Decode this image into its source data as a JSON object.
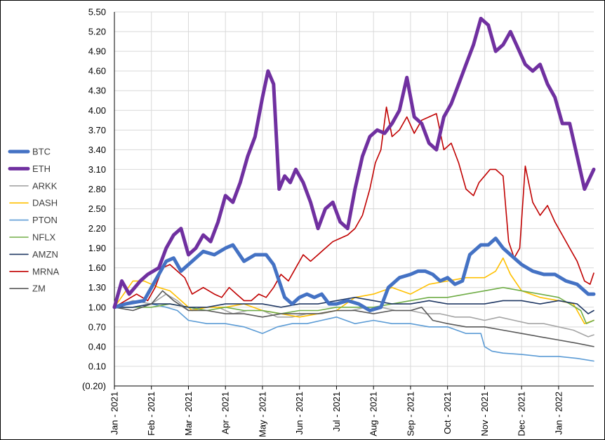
{
  "chart_data": {
    "type": "line",
    "title": "",
    "xlabel": "",
    "ylabel": "",
    "ylim": [
      -0.2,
      5.5
    ],
    "yticks": [
      "(0.20)",
      "0.10",
      "0.40",
      "0.70",
      "1.00",
      "1.30",
      "1.60",
      "1.90",
      "2.20",
      "2.50",
      "2.80",
      "3.10",
      "3.40",
      "3.70",
      "4.00",
      "4.30",
      "4.60",
      "4.90",
      "5.20",
      "5.50"
    ],
    "x_tick_labels": [
      "Jan - 2021",
      "Feb - 2021",
      "Mar - 2021",
      "Apr - 2021",
      "May - 2021",
      "Jun - 2021",
      "Jul - 2021",
      "Aug - 2021",
      "Sep - 2021",
      "Oct - 2021",
      "Nov - 2021",
      "Dec - 2021",
      "Jan - 2022"
    ],
    "x_tick_months": [
      0,
      1,
      2,
      3,
      4,
      5,
      6,
      7,
      8,
      9,
      10,
      11,
      12
    ],
    "x_range_months": [
      0,
      12.95
    ],
    "grid": true,
    "legend_position": "left",
    "series": [
      {
        "name": "BTC",
        "color": "#4472C4",
        "width": 5,
        "x_months": [
          0,
          0.3,
          0.8,
          1.1,
          1.4,
          1.6,
          1.8,
          2.1,
          2.4,
          2.7,
          3.0,
          3.2,
          3.5,
          3.8,
          4.1,
          4.3,
          4.45,
          4.6,
          4.8,
          5.0,
          5.2,
          5.4,
          5.6,
          5.8,
          6.0,
          6.3,
          6.6,
          6.9,
          7.2,
          7.4,
          7.7,
          8.0,
          8.2,
          8.4,
          8.6,
          8.8,
          9.0,
          9.2,
          9.4,
          9.6,
          9.9,
          10.1,
          10.3,
          10.5,
          10.7,
          11.0,
          11.3,
          11.6,
          11.9,
          12.2,
          12.5,
          12.8,
          12.95
        ],
        "values": [
          1.0,
          1.05,
          1.1,
          1.4,
          1.7,
          1.75,
          1.55,
          1.7,
          1.85,
          1.8,
          1.9,
          1.95,
          1.7,
          1.8,
          1.8,
          1.65,
          1.4,
          1.15,
          1.05,
          1.15,
          1.2,
          1.15,
          1.2,
          1.05,
          1.05,
          1.1,
          1.05,
          0.95,
          1.0,
          1.3,
          1.45,
          1.5,
          1.55,
          1.55,
          1.5,
          1.4,
          1.45,
          1.35,
          1.4,
          1.8,
          1.95,
          1.95,
          2.05,
          1.9,
          1.8,
          1.65,
          1.55,
          1.5,
          1.5,
          1.4,
          1.35,
          1.2,
          1.2
        ]
      },
      {
        "name": "ETH",
        "color": "#7030A0",
        "width": 5,
        "x_months": [
          0,
          0.2,
          0.4,
          0.7,
          0.9,
          1.2,
          1.4,
          1.6,
          1.8,
          2.0,
          2.2,
          2.4,
          2.6,
          2.8,
          3.0,
          3.2,
          3.4,
          3.6,
          3.8,
          4.0,
          4.15,
          4.3,
          4.45,
          4.6,
          4.75,
          4.9,
          5.1,
          5.3,
          5.5,
          5.7,
          5.9,
          6.1,
          6.3,
          6.5,
          6.7,
          6.9,
          7.1,
          7.3,
          7.5,
          7.7,
          7.9,
          8.1,
          8.3,
          8.5,
          8.7,
          8.9,
          9.1,
          9.3,
          9.5,
          9.7,
          9.9,
          10.1,
          10.3,
          10.5,
          10.7,
          10.9,
          11.1,
          11.3,
          11.5,
          11.7,
          11.9,
          12.1,
          12.3,
          12.5,
          12.7,
          12.95
        ],
        "values": [
          1.0,
          1.4,
          1.2,
          1.4,
          1.5,
          1.6,
          1.9,
          2.1,
          2.2,
          1.8,
          1.9,
          2.1,
          2.0,
          2.3,
          2.7,
          2.6,
          2.9,
          3.3,
          3.6,
          4.2,
          4.6,
          4.4,
          2.8,
          3.0,
          2.9,
          3.1,
          2.9,
          2.6,
          2.2,
          2.5,
          2.6,
          2.3,
          2.2,
          2.8,
          3.3,
          3.6,
          3.7,
          3.65,
          3.8,
          4.0,
          4.5,
          3.9,
          3.8,
          3.5,
          3.4,
          3.9,
          4.1,
          4.4,
          4.7,
          5.0,
          5.4,
          5.3,
          4.9,
          5.0,
          5.2,
          4.95,
          4.7,
          4.6,
          4.7,
          4.4,
          4.2,
          3.8,
          3.8,
          3.3,
          2.8,
          3.1
        ]
      },
      {
        "name": "ARKK",
        "color": "#A5A5A5",
        "width": 1.6,
        "x_months": [
          0,
          0.5,
          1.0,
          1.4,
          1.7,
          2.0,
          2.4,
          2.8,
          3.2,
          3.6,
          4.0,
          4.4,
          4.8,
          5.2,
          5.6,
          6.0,
          6.4,
          6.8,
          7.2,
          7.6,
          8.0,
          8.4,
          8.8,
          9.2,
          9.6,
          10.0,
          10.4,
          10.8,
          11.2,
          11.6,
          12.0,
          12.4,
          12.8,
          12.95
        ],
        "values": [
          1.0,
          1.1,
          1.05,
          1.2,
          1.1,
          0.95,
          1.0,
          1.0,
          0.9,
          0.95,
          0.95,
          0.85,
          0.85,
          0.9,
          0.9,
          0.95,
          0.95,
          1.0,
          1.0,
          0.95,
          0.95,
          0.9,
          0.9,
          0.85,
          0.85,
          0.8,
          0.85,
          0.8,
          0.75,
          0.75,
          0.7,
          0.65,
          0.55,
          0.58
        ]
      },
      {
        "name": "DASH",
        "color": "#FFC000",
        "width": 1.6,
        "x_months": [
          0,
          0.5,
          0.8,
          1.2,
          1.5,
          1.8,
          2.1,
          2.5,
          3.0,
          3.5,
          4.0,
          4.5,
          5.0,
          5.5,
          6.0,
          6.5,
          7.0,
          7.5,
          8.0,
          8.5,
          9.0,
          9.5,
          10.0,
          10.3,
          10.5,
          10.7,
          11.0,
          11.5,
          12.0,
          12.4,
          12.7,
          12.95
        ],
        "values": [
          1.0,
          1.4,
          1.4,
          1.3,
          1.25,
          1.1,
          0.95,
          1.0,
          1.0,
          1.05,
          0.95,
          0.9,
          0.85,
          0.9,
          0.95,
          1.15,
          1.2,
          1.3,
          1.2,
          1.35,
          1.4,
          1.45,
          1.45,
          1.55,
          1.75,
          1.5,
          1.25,
          1.15,
          1.1,
          1.05,
          0.75,
          0.8
        ]
      },
      {
        "name": "PTON",
        "color": "#5B9BD5",
        "width": 1.6,
        "x_months": [
          0,
          0.5,
          1.0,
          1.4,
          1.7,
          2.0,
          2.5,
          3.0,
          3.5,
          4.0,
          4.4,
          4.8,
          5.2,
          5.6,
          6.0,
          6.5,
          7.0,
          7.5,
          8.0,
          8.5,
          9.0,
          9.5,
          9.9,
          10.0,
          10.2,
          10.5,
          11.0,
          11.5,
          12.0,
          12.5,
          12.95
        ],
        "values": [
          1.0,
          1.0,
          1.05,
          1.0,
          0.95,
          0.8,
          0.75,
          0.75,
          0.7,
          0.6,
          0.7,
          0.75,
          0.75,
          0.8,
          0.85,
          0.75,
          0.8,
          0.75,
          0.75,
          0.7,
          0.7,
          0.6,
          0.6,
          0.4,
          0.33,
          0.3,
          0.28,
          0.25,
          0.25,
          0.22,
          0.18
        ]
      },
      {
        "name": "NFLX",
        "color": "#70AD47",
        "width": 1.6,
        "x_months": [
          0,
          0.5,
          1.0,
          1.5,
          2.0,
          2.5,
          3.0,
          3.5,
          4.0,
          4.5,
          5.0,
          5.5,
          6.0,
          6.5,
          7.0,
          7.5,
          8.0,
          8.5,
          9.0,
          9.5,
          10.0,
          10.5,
          11.0,
          11.5,
          12.0,
          12.3,
          12.6,
          12.75,
          12.95
        ],
        "values": [
          1.0,
          1.0,
          1.0,
          1.05,
          1.0,
          0.95,
          1.0,
          0.95,
          0.95,
          0.9,
          0.95,
          0.95,
          1.0,
          1.0,
          1.0,
          1.05,
          1.1,
          1.15,
          1.15,
          1.2,
          1.25,
          1.3,
          1.25,
          1.2,
          1.15,
          1.05,
          0.95,
          0.75,
          0.8
        ]
      },
      {
        "name": "AMZN",
        "color": "#203864",
        "width": 1.6,
        "x_months": [
          0,
          0.5,
          1.0,
          1.5,
          2.0,
          2.5,
          3.0,
          3.5,
          4.0,
          4.5,
          5.0,
          5.5,
          6.0,
          6.5,
          7.0,
          7.5,
          8.0,
          8.5,
          9.0,
          9.5,
          10.0,
          10.5,
          11.0,
          11.5,
          12.0,
          12.5,
          12.8,
          12.95
        ],
        "values": [
          1.0,
          1.0,
          1.05,
          1.05,
          1.0,
          1.0,
          1.05,
          1.05,
          1.05,
          1.0,
          1.05,
          1.05,
          1.1,
          1.15,
          1.1,
          1.05,
          1.05,
          1.1,
          1.05,
          1.05,
          1.05,
          1.1,
          1.1,
          1.05,
          1.1,
          1.05,
          0.9,
          0.95
        ]
      },
      {
        "name": "MRNA",
        "color": "#C00000",
        "width": 1.6,
        "x_months": [
          0,
          0.3,
          0.6,
          0.9,
          1.1,
          1.3,
          1.5,
          1.7,
          1.9,
          2.1,
          2.4,
          2.7,
          2.9,
          3.1,
          3.3,
          3.5,
          3.7,
          3.9,
          4.1,
          4.3,
          4.5,
          4.7,
          4.9,
          5.1,
          5.3,
          5.5,
          5.7,
          5.9,
          6.1,
          6.3,
          6.5,
          6.7,
          6.9,
          7.05,
          7.2,
          7.35,
          7.5,
          7.7,
          7.9,
          8.1,
          8.3,
          8.5,
          8.7,
          8.9,
          9.1,
          9.3,
          9.5,
          9.7,
          9.85,
          10.0,
          10.15,
          10.3,
          10.5,
          10.65,
          10.8,
          10.95,
          11.1,
          11.3,
          11.5,
          11.7,
          11.9,
          12.1,
          12.3,
          12.5,
          12.7,
          12.85,
          12.95
        ],
        "values": [
          1.0,
          1.1,
          1.2,
          1.1,
          1.3,
          1.6,
          1.65,
          1.55,
          1.45,
          1.2,
          1.3,
          1.2,
          1.15,
          1.3,
          1.2,
          1.1,
          1.1,
          1.2,
          1.15,
          1.3,
          1.5,
          1.4,
          1.6,
          1.8,
          1.7,
          1.8,
          1.9,
          2.0,
          2.05,
          2.1,
          2.2,
          2.4,
          2.8,
          3.2,
          3.4,
          4.05,
          3.6,
          3.7,
          3.9,
          3.65,
          3.85,
          3.9,
          3.95,
          3.4,
          3.5,
          3.2,
          2.8,
          2.7,
          2.9,
          3.0,
          3.1,
          3.1,
          3.0,
          2.0,
          1.75,
          1.9,
          3.15,
          2.6,
          2.4,
          2.55,
          2.3,
          2.1,
          1.9,
          1.7,
          1.4,
          1.35,
          1.52
        ]
      },
      {
        "name": "ZM",
        "color": "#595959",
        "width": 1.6,
        "x_months": [
          0,
          0.5,
          1.0,
          1.3,
          1.6,
          2.0,
          2.5,
          3.0,
          3.5,
          4.0,
          4.5,
          5.0,
          5.5,
          6.0,
          6.5,
          7.0,
          7.5,
          8.0,
          8.3,
          8.6,
          9.0,
          9.5,
          10.0,
          10.5,
          11.0,
          11.5,
          12.0,
          12.5,
          12.95
        ],
        "values": [
          1.0,
          0.95,
          1.05,
          1.25,
          1.1,
          0.95,
          0.95,
          0.9,
          0.9,
          0.85,
          0.9,
          0.9,
          0.9,
          0.95,
          0.95,
          0.9,
          0.95,
          0.95,
          1.0,
          0.8,
          0.75,
          0.7,
          0.7,
          0.65,
          0.6,
          0.55,
          0.5,
          0.45,
          0.4
        ]
      }
    ]
  }
}
